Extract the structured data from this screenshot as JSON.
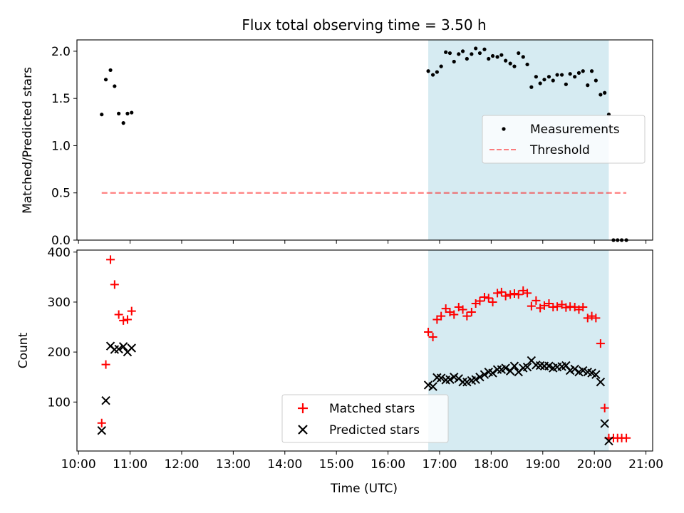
{
  "figure": {
    "title": "Flux total observing time = 3.50 h",
    "background": "#ffffff",
    "highlight_color": "#add8e6",
    "threshold_color": "#ff0000",
    "matched_color": "#ff0000",
    "predicted_color": "#000000",
    "measurement_color": "#000000"
  },
  "chart_data": [
    {
      "type": "scatter",
      "title": "Flux total observing time = 3.50 h",
      "xlabel": "",
      "ylabel": "Matched/Predicted stars",
      "x_unit": "hours (UTC)",
      "xlim": [
        9.97,
        21.13
      ],
      "ylim": [
        0.0,
        2.12
      ],
      "yticks": [
        0.0,
        0.5,
        1.0,
        1.5,
        2.0
      ],
      "ytick_labels": [
        "0.0",
        "0.5",
        "1.0",
        "1.5",
        "2.0"
      ],
      "highlight_span": [
        16.78,
        20.28
      ],
      "legend_position": "center-right",
      "series": [
        {
          "name": "Measurements",
          "kind": "points",
          "x": [
            10.45,
            10.53,
            10.62,
            10.7,
            10.78,
            10.87,
            10.95,
            11.03,
            16.78,
            16.87,
            16.95,
            17.03,
            17.12,
            17.2,
            17.28,
            17.37,
            17.45,
            17.53,
            17.62,
            17.7,
            17.78,
            17.87,
            17.95,
            18.03,
            18.12,
            18.2,
            18.28,
            18.37,
            18.45,
            18.53,
            18.62,
            18.7,
            18.78,
            18.87,
            18.95,
            19.03,
            19.12,
            19.2,
            19.28,
            19.37,
            19.45,
            19.53,
            19.62,
            19.7,
            19.78,
            19.87,
            19.95,
            20.03,
            20.12,
            20.2,
            20.28,
            20.37,
            20.45,
            20.53,
            20.62
          ],
          "y": [
            1.33,
            1.7,
            1.8,
            1.63,
            1.34,
            1.24,
            1.34,
            1.35,
            1.79,
            1.75,
            1.78,
            1.84,
            1.99,
            1.98,
            1.89,
            1.97,
            2.0,
            1.92,
            1.97,
            2.03,
            1.98,
            2.02,
            1.92,
            1.95,
            1.94,
            1.96,
            1.9,
            1.87,
            1.84,
            1.98,
            1.94,
            1.86,
            1.62,
            1.73,
            1.66,
            1.7,
            1.73,
            1.69,
            1.75,
            1.75,
            1.65,
            1.76,
            1.73,
            1.77,
            1.79,
            1.64,
            1.79,
            1.69,
            1.54,
            1.56,
            1.33,
            0.0,
            0.0,
            0.0,
            0.0
          ]
        },
        {
          "name": "Threshold",
          "kind": "dashed-line",
          "x": [
            10.45,
            20.62
          ],
          "y": [
            0.5,
            0.5
          ]
        }
      ]
    },
    {
      "type": "scatter",
      "xlabel": "Time (UTC)",
      "ylabel": "Count",
      "x_unit": "hours (UTC)",
      "xlim": [
        9.97,
        21.13
      ],
      "ylim": [
        2,
        404
      ],
      "yticks": [
        100,
        200,
        300,
        400
      ],
      "ytick_labels": [
        "100",
        "200",
        "300",
        "400"
      ],
      "xticks": [
        10,
        11,
        12,
        13,
        14,
        15,
        16,
        17,
        18,
        19,
        20,
        21
      ],
      "xtick_labels": [
        "10:00",
        "11:00",
        "12:00",
        "13:00",
        "14:00",
        "15:00",
        "16:00",
        "17:00",
        "18:00",
        "19:00",
        "20:00",
        "21:00"
      ],
      "highlight_span": [
        16.78,
        20.28
      ],
      "legend_position": "lower-center",
      "series": [
        {
          "name": "Matched stars",
          "marker": "plus",
          "x": [
            10.45,
            10.53,
            10.62,
            10.7,
            10.78,
            10.87,
            10.95,
            11.03,
            16.78,
            16.87,
            16.95,
            17.03,
            17.12,
            17.2,
            17.28,
            17.37,
            17.45,
            17.53,
            17.62,
            17.7,
            17.78,
            17.87,
            17.95,
            18.03,
            18.12,
            18.2,
            18.28,
            18.37,
            18.45,
            18.53,
            18.62,
            18.7,
            18.78,
            18.87,
            18.95,
            19.03,
            19.12,
            19.2,
            19.28,
            19.37,
            19.45,
            19.53,
            19.62,
            19.7,
            19.78,
            19.87,
            19.95,
            20.03,
            20.12,
            20.2,
            20.28,
            20.37,
            20.45,
            20.53,
            20.62
          ],
          "y": [
            58,
            175,
            385,
            335,
            275,
            263,
            265,
            282,
            240,
            230,
            265,
            272,
            287,
            280,
            275,
            290,
            285,
            272,
            280,
            297,
            302,
            310,
            308,
            300,
            318,
            320,
            312,
            315,
            317,
            315,
            323,
            318,
            292,
            303,
            288,
            293,
            297,
            290,
            291,
            295,
            289,
            291,
            290,
            285,
            290,
            268,
            272,
            268,
            217,
            88,
            28,
            28,
            28,
            28,
            28
          ]
        },
        {
          "name": "Predicted stars",
          "marker": "x",
          "x": [
            10.45,
            10.53,
            10.62,
            10.7,
            10.78,
            10.87,
            10.95,
            11.03,
            16.78,
            16.87,
            16.95,
            17.03,
            17.12,
            17.2,
            17.28,
            17.37,
            17.45,
            17.53,
            17.62,
            17.7,
            17.78,
            17.87,
            17.95,
            18.03,
            18.12,
            18.2,
            18.28,
            18.37,
            18.45,
            18.53,
            18.62,
            18.7,
            18.78,
            18.87,
            18.95,
            19.03,
            19.12,
            19.2,
            19.28,
            19.37,
            19.45,
            19.53,
            19.62,
            19.7,
            19.78,
            19.87,
            19.95,
            20.03,
            20.12,
            20.2,
            20.28
          ],
          "y": [
            43,
            103,
            212,
            205,
            206,
            211,
            200,
            208,
            134,
            131,
            149,
            148,
            144,
            145,
            150,
            147,
            140,
            140,
            143,
            145,
            150,
            155,
            160,
            158,
            165,
            165,
            168,
            162,
            172,
            160,
            168,
            170,
            183,
            174,
            173,
            172,
            172,
            168,
            170,
            171,
            173,
            163,
            166,
            160,
            163,
            160,
            158,
            155,
            140,
            57,
            22
          ]
        }
      ]
    }
  ]
}
